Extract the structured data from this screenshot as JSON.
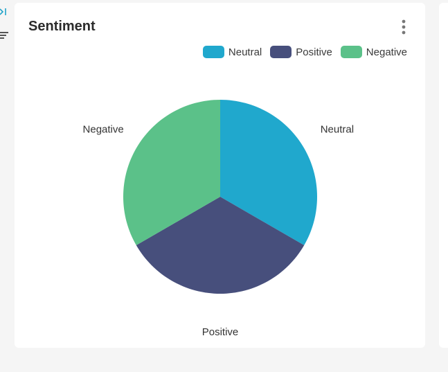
{
  "card": {
    "title": "Sentiment"
  },
  "icons": {
    "expand": "expand-panel-icon",
    "filter": "filter-icon",
    "menu": "more-vertical-icon"
  },
  "colors": {
    "accent": "#1fa3c9"
  },
  "chart_data": {
    "type": "pie",
    "title": "Sentiment",
    "legend_position": "top-right",
    "slices": [
      {
        "label": "Neutral",
        "value": 33.3,
        "color": "#20a8cd"
      },
      {
        "label": "Positive",
        "value": 33.3,
        "color": "#474f7c"
      },
      {
        "label": "Negative",
        "value": 33.3,
        "color": "#5bc189"
      }
    ]
  }
}
